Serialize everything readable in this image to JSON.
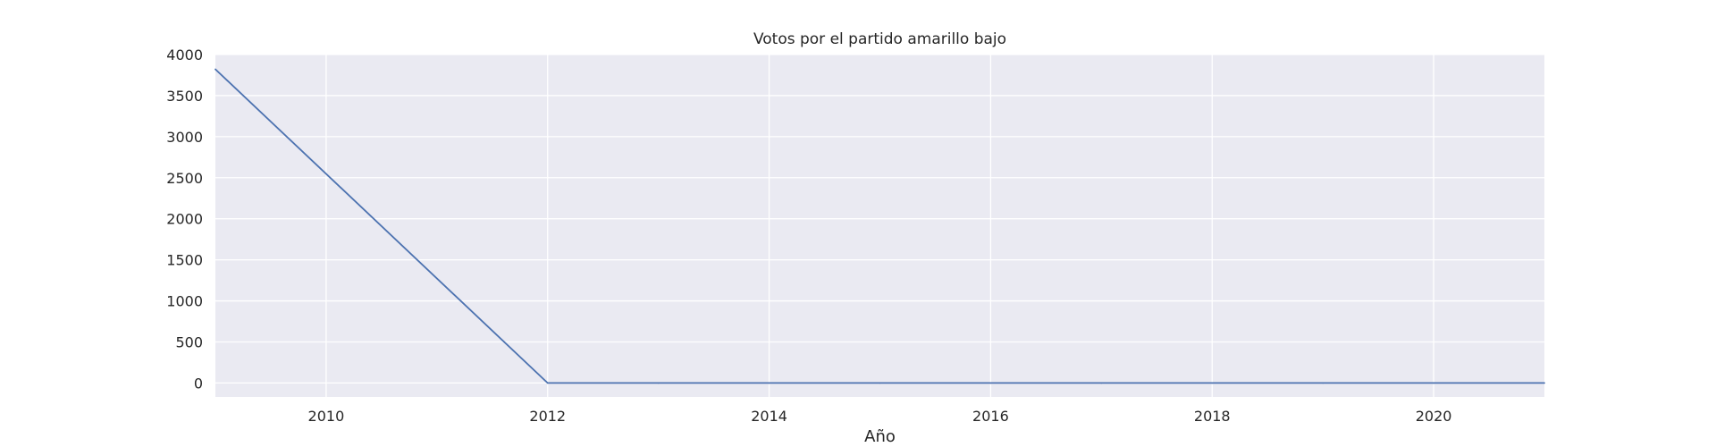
{
  "chart_data": {
    "type": "line",
    "title": "Votos por el partido amarillo bajo",
    "xlabel": "Año",
    "ylabel": "",
    "xlim": [
      2009,
      2021
    ],
    "ylim": [
      -170,
      4000
    ],
    "x_ticks": [
      2010,
      2012,
      2014,
      2016,
      2018,
      2020
    ],
    "y_ticks": [
      0,
      500,
      1000,
      1500,
      2000,
      2500,
      3000,
      3500,
      4000
    ],
    "grid": true,
    "legend": "none",
    "series": [
      {
        "x": [
          2009,
          2012,
          2013,
          2014,
          2015,
          2016,
          2017,
          2018,
          2019,
          2020,
          2021
        ],
        "values": [
          3820,
          0,
          0,
          0,
          0,
          0,
          0,
          0,
          0,
          0,
          0
        ],
        "color": "#4c72b0"
      }
    ],
    "colors": {
      "plot_background": "#eaeaf2",
      "grid": "#ffffff",
      "text": "#262626"
    }
  }
}
